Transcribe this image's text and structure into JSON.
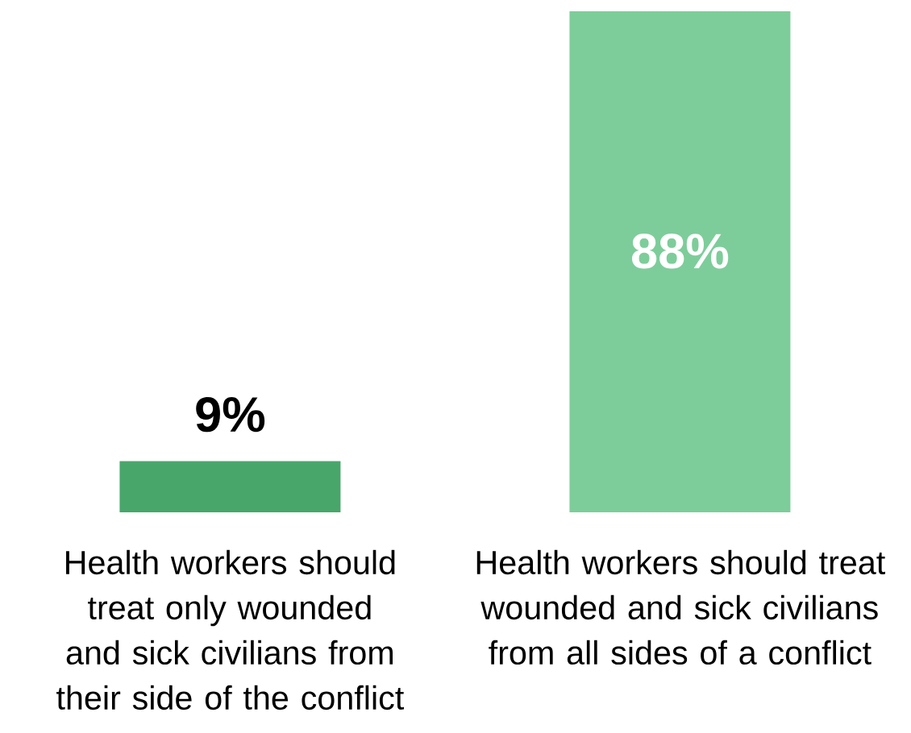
{
  "chart_data": {
    "type": "bar",
    "categories": [
      "Health workers should treat only wounded and sick civilians from their side of the conflict",
      "Health workers should treat wounded and sick civilians from all sides of a conflict"
    ],
    "values": [
      9,
      88
    ],
    "colors": [
      "#48a66b",
      "#7dcd9a"
    ],
    "value_labels": [
      "9%",
      "88%"
    ]
  }
}
